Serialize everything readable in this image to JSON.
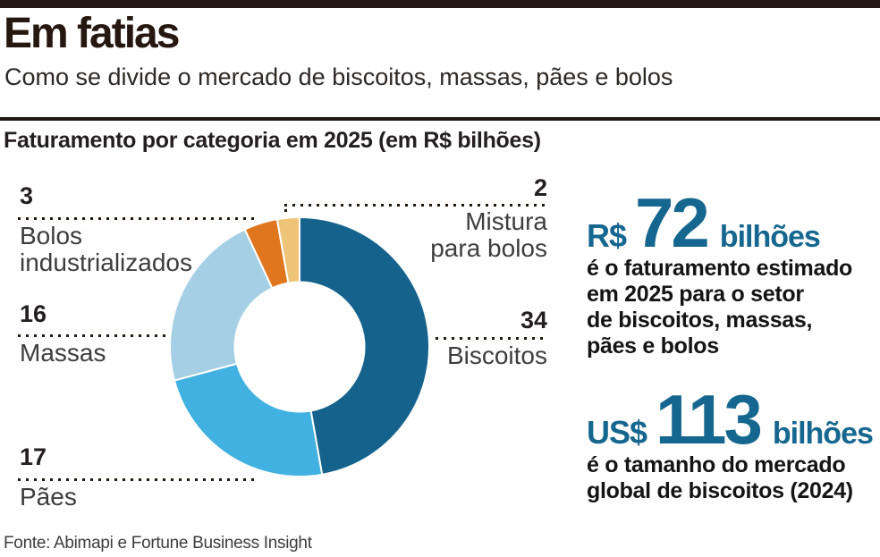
{
  "header": {
    "title": "Em fatias",
    "subtitle": "Como se divide o mercado de biscoitos, massas, pães e bolos"
  },
  "chart_data": {
    "type": "pie",
    "variant": "donut",
    "title": "Faturamento por categoria em 2025 (em R$ bilhões)",
    "unit": "R$ bilhões",
    "total": 72,
    "start_angle_deg": 0,
    "direction": "clockwise",
    "legend_position": "callouts",
    "slices": [
      {
        "label": "Biscoitos",
        "value": 34,
        "color": "#15638d"
      },
      {
        "label": "Pães",
        "value": 17,
        "color": "#41b1e1"
      },
      {
        "label": "Massas",
        "value": 16,
        "color": "#a5cfe4"
      },
      {
        "label": "Bolos industrializados",
        "value": 3,
        "color": "#e0761e"
      },
      {
        "label": "Mistura para bolos",
        "value": 2,
        "color": "#edc478"
      }
    ]
  },
  "stats": [
    {
      "currency": "R$",
      "value": "72",
      "unit": "bilhões",
      "description_lines": [
        "é o faturamento estimado",
        "em 2025 para o setor",
        "de biscoitos, massas,",
        "pães e bolos"
      ]
    },
    {
      "currency": "US$",
      "value": "113",
      "unit": "bilhões",
      "description_lines": [
        "é o tamanho do mercado",
        "global de biscoitos (2024)"
      ]
    }
  ],
  "footer": {
    "source": "Fonte: Abimapi e Fortune Business Insight"
  },
  "colors": {
    "accent_blue": "#16678f",
    "ink": "#231812",
    "text_gray": "#3d3d3d"
  }
}
